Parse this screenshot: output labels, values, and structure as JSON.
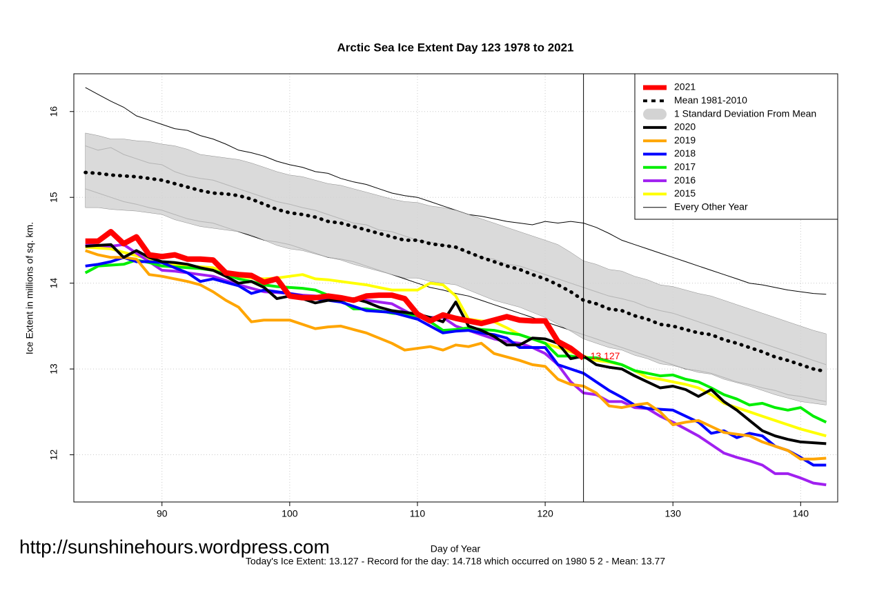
{
  "chart_data": {
    "type": "line",
    "title": "Arctic Sea Ice Extent Day 123 1978 to 2021",
    "x_label": "Day of Year",
    "y_label": "Ice Extent in millions of sq. km.",
    "note": "Today's Ice Extent: 13.127  - Record for the day: 14.718 which occurred on 1980 5 2  - Mean: 13.77",
    "watermark": "http://sunshinehours.wordpress.com",
    "xlim": [
      83.1,
      142.9
    ],
    "ylim": [
      11.45,
      16.44
    ],
    "xticks": [
      90,
      100,
      110,
      120,
      130,
      140
    ],
    "yticks": [
      12,
      13,
      14,
      15,
      16
    ],
    "grid": true,
    "legend": "topright",
    "today": 123,
    "today_label": "13.127",
    "x": [
      84,
      85,
      86,
      87,
      88,
      89,
      90,
      91,
      92,
      93,
      94,
      95,
      96,
      97,
      98,
      99,
      100,
      101,
      102,
      103,
      104,
      105,
      106,
      107,
      108,
      109,
      110,
      111,
      112,
      113,
      114,
      115,
      116,
      117,
      118,
      119,
      120,
      121,
      122,
      123,
      124,
      125,
      126,
      127,
      128,
      129,
      130,
      131,
      132,
      133,
      134,
      135,
      136,
      137,
      138,
      139,
      140,
      141,
      142
    ],
    "series": [
      {
        "name": "2021",
        "color": "#ff0000",
        "values": [
          14.49,
          14.49,
          14.6,
          14.46,
          14.54,
          14.33,
          14.31,
          14.33,
          14.28,
          14.28,
          14.27,
          14.12,
          14.1,
          14.09,
          14.01,
          14.05,
          13.85,
          13.83,
          13.83,
          13.85,
          13.83,
          13.8,
          13.85,
          13.86,
          13.86,
          13.82,
          13.64,
          13.56,
          13.63,
          13.59,
          13.56,
          13.53,
          13.57,
          13.61,
          13.57,
          13.56,
          13.56,
          13.32,
          13.24,
          13.127,
          null,
          null,
          null,
          null,
          null,
          null,
          null,
          null,
          null,
          null,
          null,
          null,
          null,
          null,
          null,
          null,
          null,
          null,
          null
        ]
      },
      {
        "name": "2020",
        "color": "#000000",
        "values": [
          14.43,
          14.44,
          14.45,
          14.3,
          14.38,
          14.3,
          14.25,
          14.24,
          14.22,
          14.18,
          14.15,
          14.08,
          14.0,
          14.02,
          13.95,
          13.82,
          13.85,
          13.82,
          13.77,
          13.8,
          13.8,
          13.82,
          13.78,
          13.72,
          13.68,
          13.66,
          13.64,
          13.6,
          13.55,
          13.78,
          13.5,
          13.45,
          13.38,
          13.28,
          13.28,
          13.36,
          13.35,
          13.3,
          13.12,
          13.15,
          13.05,
          13.02,
          13.0,
          12.92,
          12.85,
          12.78,
          12.8,
          12.76,
          12.68,
          12.76,
          12.62,
          12.52,
          12.4,
          12.28,
          12.22,
          12.18,
          12.15,
          12.14,
          12.13
        ]
      },
      {
        "name": "2019",
        "color": "#ffa500",
        "values": [
          14.38,
          14.33,
          14.3,
          14.3,
          14.28,
          14.1,
          14.08,
          14.05,
          14.02,
          13.98,
          13.9,
          13.8,
          13.72,
          13.55,
          13.57,
          13.57,
          13.57,
          13.52,
          13.47,
          13.49,
          13.5,
          13.46,
          13.42,
          13.36,
          13.3,
          13.22,
          13.24,
          13.26,
          13.22,
          13.28,
          13.26,
          13.3,
          13.18,
          13.14,
          13.1,
          13.05,
          13.03,
          12.88,
          12.82,
          12.8,
          12.72,
          12.57,
          12.55,
          12.58,
          12.6,
          12.5,
          12.35,
          12.38,
          12.4,
          12.33,
          12.26,
          12.24,
          12.22,
          12.15,
          12.1,
          12.05,
          11.95,
          11.95,
          11.96
        ]
      },
      {
        "name": "2018",
        "color": "#0000ff",
        "values": [
          14.2,
          14.22,
          14.25,
          14.3,
          14.25,
          14.25,
          14.24,
          14.18,
          14.12,
          14.02,
          14.05,
          14.01,
          13.97,
          13.88,
          13.92,
          13.9,
          13.88,
          13.85,
          13.82,
          13.8,
          13.78,
          13.73,
          13.68,
          13.67,
          13.66,
          13.62,
          13.58,
          13.5,
          13.42,
          13.44,
          13.45,
          13.42,
          13.4,
          13.36,
          13.25,
          13.25,
          13.25,
          13.05,
          13.0,
          12.95,
          12.85,
          12.75,
          12.67,
          12.58,
          12.54,
          12.53,
          12.52,
          12.45,
          12.38,
          12.25,
          12.28,
          12.2,
          12.25,
          12.22,
          12.1,
          12.05,
          11.97,
          11.88,
          11.88
        ]
      },
      {
        "name": "2017",
        "color": "#00ee00",
        "values": [
          14.12,
          14.2,
          14.21,
          14.22,
          14.27,
          14.24,
          14.2,
          14.19,
          14.18,
          14.17,
          14.15,
          14.1,
          14.05,
          14.02,
          13.98,
          13.96,
          13.95,
          13.94,
          13.92,
          13.86,
          13.8,
          13.7,
          13.7,
          13.68,
          13.65,
          13.64,
          13.62,
          13.55,
          13.45,
          13.46,
          13.48,
          13.46,
          13.45,
          13.42,
          13.4,
          13.35,
          13.3,
          13.15,
          13.15,
          13.13,
          13.13,
          13.09,
          13.05,
          12.98,
          12.95,
          12.92,
          12.93,
          12.88,
          12.85,
          12.78,
          12.7,
          12.65,
          12.58,
          12.6,
          12.55,
          12.52,
          12.55,
          12.45,
          12.38
        ]
      },
      {
        "name": "2016",
        "color": "#a020f0",
        "values": [
          14.45,
          14.44,
          14.43,
          14.45,
          14.35,
          14.25,
          14.15,
          14.14,
          14.12,
          14.1,
          14.08,
          14.03,
          13.98,
          13.94,
          13.9,
          13.89,
          13.88,
          13.86,
          13.85,
          13.84,
          13.82,
          13.81,
          13.8,
          13.78,
          13.76,
          13.68,
          13.6,
          13.6,
          13.6,
          13.5,
          13.45,
          13.4,
          13.35,
          13.32,
          13.3,
          13.25,
          13.18,
          13.05,
          12.85,
          12.72,
          12.7,
          12.62,
          12.62,
          12.55,
          12.54,
          12.45,
          12.38,
          12.3,
          12.22,
          12.12,
          12.02,
          11.97,
          11.93,
          11.88,
          11.78,
          11.78,
          11.73,
          11.67,
          11.65
        ]
      },
      {
        "name": "2015",
        "color": "#ffff00",
        "values": [
          14.42,
          14.41,
          14.4,
          14.36,
          14.32,
          14.28,
          14.25,
          14.22,
          14.2,
          14.19,
          14.18,
          14.13,
          14.08,
          14.06,
          14.05,
          14.06,
          14.08,
          14.1,
          14.05,
          14.04,
          14.02,
          14.0,
          13.98,
          13.95,
          13.92,
          13.92,
          13.92,
          14.0,
          13.98,
          13.85,
          13.58,
          13.56,
          13.55,
          13.48,
          13.4,
          13.35,
          13.3,
          13.25,
          13.2,
          13.15,
          13.1,
          13.08,
          13.05,
          12.98,
          12.9,
          12.88,
          12.85,
          12.82,
          12.78,
          12.7,
          12.6,
          12.55,
          12.5,
          12.45,
          12.4,
          12.35,
          12.3,
          12.26,
          12.22
        ]
      }
    ],
    "mean": {
      "name": "Mean 1981-2010",
      "color": "#000000",
      "values": [
        15.29,
        15.28,
        15.26,
        15.25,
        15.24,
        15.22,
        15.2,
        15.16,
        15.12,
        15.08,
        15.05,
        15.04,
        15.02,
        14.98,
        14.92,
        14.86,
        14.82,
        14.8,
        14.77,
        14.72,
        14.7,
        14.66,
        14.62,
        14.58,
        14.54,
        14.5,
        14.5,
        14.46,
        14.44,
        14.42,
        14.36,
        14.3,
        14.25,
        14.2,
        14.16,
        14.1,
        14.05,
        13.98,
        13.9,
        13.8,
        13.76,
        13.7,
        13.68,
        13.62,
        13.58,
        13.52,
        13.5,
        13.46,
        13.42,
        13.4,
        13.34,
        13.3,
        13.25,
        13.2,
        13.14,
        13.1,
        13.05,
        13.0,
        12.97
      ]
    },
    "sd_band": {
      "name": "1 Standard Deviation From Mean",
      "color": "#d3d3d3",
      "upper": [
        15.75,
        15.72,
        15.68,
        15.68,
        15.66,
        15.65,
        15.62,
        15.6,
        15.56,
        15.5,
        15.48,
        15.46,
        15.44,
        15.4,
        15.35,
        15.3,
        15.26,
        15.24,
        15.2,
        15.16,
        15.14,
        15.1,
        15.06,
        15.02,
        14.98,
        14.95,
        14.94,
        14.9,
        14.88,
        14.85,
        14.8,
        14.75,
        14.7,
        14.65,
        14.6,
        14.55,
        14.5,
        14.45,
        14.36,
        14.26,
        14.22,
        14.16,
        14.14,
        14.08,
        14.04,
        13.98,
        13.96,
        13.92,
        13.88,
        13.85,
        13.8,
        13.75,
        13.7,
        13.65,
        13.6,
        13.55,
        13.5,
        13.45,
        13.41
      ],
      "lower": [
        14.88,
        14.88,
        14.86,
        14.85,
        14.84,
        14.82,
        14.8,
        14.74,
        14.7,
        14.66,
        14.64,
        14.62,
        14.6,
        14.56,
        14.5,
        14.44,
        14.4,
        14.38,
        14.34,
        14.3,
        14.27,
        14.22,
        14.18,
        14.14,
        14.1,
        14.06,
        14.06,
        14.02,
        14.0,
        13.98,
        13.92,
        13.86,
        13.8,
        13.76,
        13.72,
        13.66,
        13.6,
        13.52,
        13.44,
        13.35,
        13.3,
        13.25,
        13.22,
        13.16,
        13.12,
        13.06,
        13.04,
        13.0,
        12.96,
        12.94,
        12.88,
        12.84,
        12.8,
        12.75,
        12.7,
        12.66,
        12.62,
        12.6,
        12.58
      ]
    },
    "other_years": {
      "name": "Every Other Year",
      "color": "#000000",
      "lines": [
        [
          16.28,
          16.2,
          16.12,
          16.05,
          15.95,
          15.9,
          15.85,
          15.8,
          15.78,
          15.72,
          15.68,
          15.62,
          15.55,
          15.52,
          15.48,
          15.42,
          15.38,
          15.35,
          15.3,
          15.28,
          15.22,
          15.18,
          15.15,
          15.1,
          15.05,
          15.02,
          15.0,
          14.95,
          14.9,
          14.85,
          14.8,
          14.78,
          14.75,
          14.72,
          14.7,
          14.68,
          14.72,
          14.7,
          14.72,
          14.7,
          14.65,
          14.58,
          14.5,
          14.45,
          14.4,
          14.35,
          14.3,
          14.25,
          14.2,
          14.15,
          14.1,
          14.05,
          14.0,
          13.98,
          13.95,
          13.92,
          13.9,
          13.88,
          13.87
        ],
        [
          15.6,
          15.55,
          15.58,
          15.5,
          15.45,
          15.4,
          15.38,
          15.3,
          15.25,
          15.22,
          15.2,
          15.15,
          15.1,
          15.05,
          15.0,
          14.95,
          14.92,
          14.88,
          14.85,
          14.8,
          14.75,
          14.7,
          14.68,
          14.62,
          14.6,
          14.55,
          14.5,
          14.48,
          14.45,
          14.4,
          14.35,
          14.3,
          14.28,
          14.22,
          14.2,
          14.15,
          14.1,
          14.05,
          14.0,
          13.95,
          13.9,
          13.85,
          13.82,
          13.78,
          13.72,
          13.68,
          13.65,
          13.6,
          13.55,
          13.5,
          13.45,
          13.4,
          13.35,
          13.3,
          13.25,
          13.2,
          13.15,
          13.1,
          13.05
        ],
        [
          15.1,
          15.05,
          15.0,
          14.95,
          14.92,
          14.88,
          14.85,
          14.8,
          14.75,
          14.72,
          14.7,
          14.65,
          14.6,
          14.55,
          14.5,
          14.48,
          14.45,
          14.4,
          14.35,
          14.3,
          14.28,
          14.25,
          14.2,
          14.15,
          14.1,
          14.05,
          14.0,
          13.95,
          13.92,
          13.88,
          13.85,
          13.8,
          13.75,
          13.7,
          13.65,
          13.6,
          13.55,
          13.5,
          13.45,
          13.4,
          13.35,
          13.3,
          13.25,
          13.2,
          13.15,
          13.1,
          13.05,
          13.0,
          12.98,
          12.95,
          12.9,
          12.85,
          12.82,
          12.78,
          12.75,
          12.7,
          12.68,
          12.65,
          12.62
        ]
      ]
    }
  }
}
